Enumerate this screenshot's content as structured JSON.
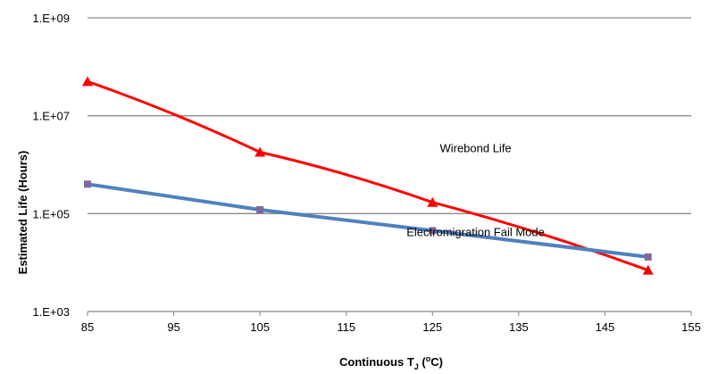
{
  "chart_data": {
    "type": "line",
    "title": "",
    "xlabel_main": "Continuous T",
    "xlabel_sub": "J",
    "xlabel_open": " (",
    "xlabel_sup": "o",
    "xlabel_close": "C)",
    "ylabel": "Estimated Life (Hours)",
    "xlim": [
      85,
      155
    ],
    "x_ticks": [
      85,
      95,
      105,
      115,
      125,
      135,
      145,
      155
    ],
    "y_scale": "log",
    "ylim": [
      1000,
      1000000000
    ],
    "y_ticks": [
      {
        "value": 1000,
        "label": "1.E+03"
      },
      {
        "value": 100000,
        "label": "1.E+05"
      },
      {
        "value": 10000000,
        "label": "1.E+07"
      },
      {
        "value": 1000000000,
        "label": "1.E+09"
      }
    ],
    "grid": "horizontal",
    "series": [
      {
        "name": "Wirebond Life",
        "color": "#ff0000",
        "marker": "triangle",
        "x": [
          85,
          105,
          125,
          150
        ],
        "values": [
          50000000,
          1800000,
          170000,
          7000
        ]
      },
      {
        "name": "Electromigration Fail Mode",
        "color": "#4f81bd",
        "marker_color": "#7f6a9f",
        "marker": "square",
        "x": [
          85,
          105,
          125,
          150
        ],
        "values": [
          400000,
          120000,
          45000,
          13000
        ]
      }
    ],
    "annotations": [
      {
        "text": "Wirebond Life",
        "x": 130,
        "y": 1800000
      },
      {
        "text": "Electromigration Fail Mode",
        "x": 130,
        "y": 35000
      }
    ]
  }
}
